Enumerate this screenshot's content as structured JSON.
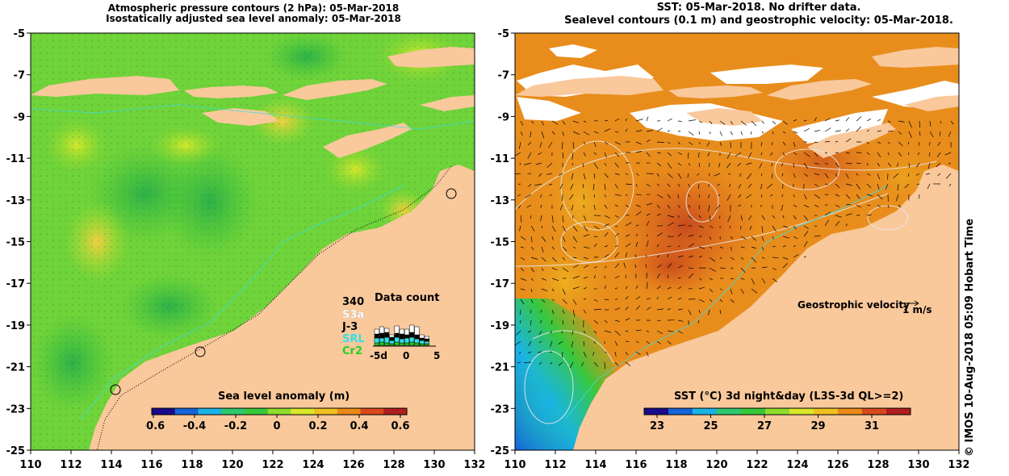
{
  "left_panel": {
    "title_line1": "Atmospheric pressure contours (2 hPa): 05-Mar-2018",
    "title_line2": "Isostatically adjusted sea level anomaly: 05-Mar-2018",
    "colorbar_label": "Sea level anomaly (m)",
    "colorbar_ticks": [
      "-0.6",
      "-0.4",
      "-0.2",
      "0",
      "0.2",
      "0.4",
      "0.6"
    ],
    "colorbar_colors": [
      "#1a0a8c",
      "#1565d8",
      "#19b4e6",
      "#2ec86e",
      "#39c83a",
      "#8fdc2c",
      "#d8e82a",
      "#f0c020",
      "#ec8a18",
      "#d8481c",
      "#b01e1e"
    ],
    "data_count": {
      "title": "Data count",
      "total": "340",
      "missions": [
        {
          "name": "S3a",
          "color": "#ffffff"
        },
        {
          "name": "J-3",
          "color": "#000000"
        },
        {
          "name": "SRL",
          "color": "#33e0e6"
        },
        {
          "name": "Cr2",
          "color": "#22d022"
        }
      ],
      "axis_ticks": [
        "-5d",
        "0",
        "5"
      ]
    }
  },
  "right_panel": {
    "title_line1": "SST: 05-Mar-2018. No drifter data.",
    "title_line2": "Sealevel contours (0.1 m) and geostrophic velocity: 05-Mar-2018.",
    "colorbar_label": "SST (°C) 3d night&day (L3S-3d QL>=2)",
    "colorbar_ticks": [
      "23",
      "25",
      "27",
      "29",
      "31"
    ],
    "colorbar_colors": [
      "#1a0a8c",
      "#1565d8",
      "#19b4e6",
      "#2ec86e",
      "#39c83a",
      "#8fdc2c",
      "#d8e82a",
      "#f0c020",
      "#ec8a18",
      "#d8481c",
      "#b01e1e"
    ],
    "velocity_label": "Geostrophic velocity",
    "velocity_scale": "1 m/s"
  },
  "axes": {
    "x_ticks": [
      "110",
      "112",
      "114",
      "116",
      "118",
      "120",
      "122",
      "124",
      "126",
      "128",
      "130",
      "132"
    ],
    "y_ticks": [
      "-5",
      "-7",
      "-9",
      "-11",
      "-13",
      "-15",
      "-17",
      "-19",
      "-21",
      "-23",
      "-25"
    ]
  },
  "colors": {
    "land": "#f9c89b",
    "ocean_sla": "#5fd438",
    "ocean_sst": "#e6901e"
  },
  "credit": "© IMOS 10-Aug-2018 05:09 Hobart Time"
}
